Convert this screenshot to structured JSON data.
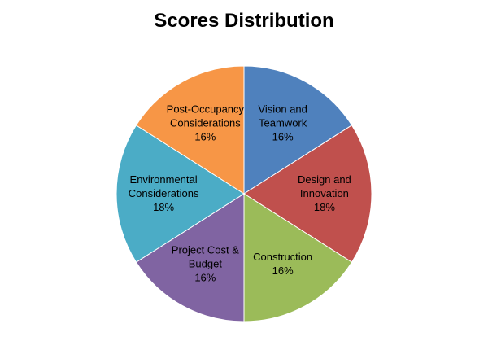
{
  "chart_data": {
    "type": "pie",
    "title": "Scores Distribution",
    "slices": [
      {
        "label": [
          "Vision and",
          "Teamwork"
        ],
        "percent": "16%",
        "value": 16,
        "color": "#4F81BD"
      },
      {
        "label": [
          "Design and",
          "Innovation"
        ],
        "percent": "18%",
        "value": 18,
        "color": "#C0504D"
      },
      {
        "label": [
          "Construction"
        ],
        "percent": "16%",
        "value": 16,
        "color": "#9BBB59"
      },
      {
        "label": [
          "Project Cost &",
          "Budget"
        ],
        "percent": "16%",
        "value": 16,
        "color": "#8064A2"
      },
      {
        "label": [
          "Environmental",
          "Considerations"
        ],
        "percent": "18%",
        "value": 18,
        "color": "#4BACC6"
      },
      {
        "label": [
          "Post-Occupancy",
          "Considerations"
        ],
        "percent": "16%",
        "value": 16,
        "color": "#F79646"
      }
    ]
  }
}
